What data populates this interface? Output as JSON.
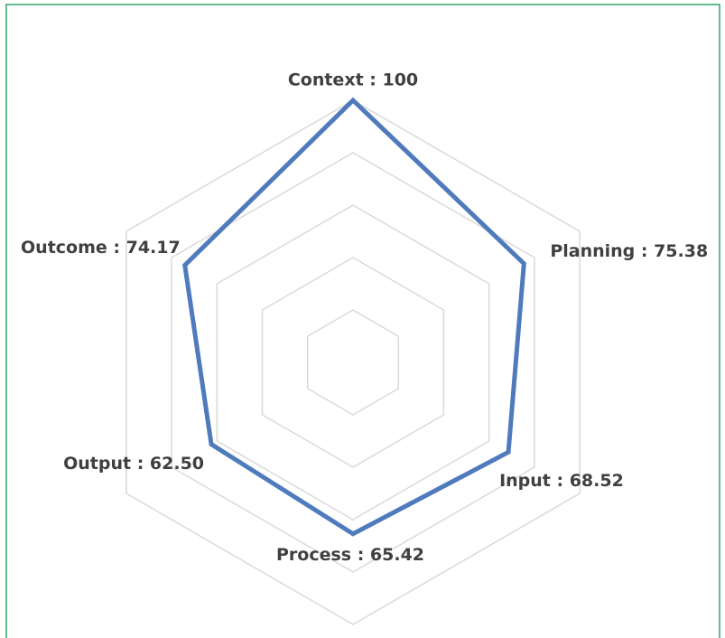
{
  "chart_data": {
    "type": "radar",
    "categories": [
      "Context : 100",
      "Planning : 75.38",
      "Input : 68.52",
      "Process : 65.42",
      "Output : 62.50",
      "Outcome : 74.17"
    ],
    "values": [
      100,
      75.38,
      68.52,
      65.42,
      62.5,
      74.17
    ],
    "color": "#4f7bbd",
    "rlim": [
      0,
      100
    ],
    "rticks": [
      20,
      40,
      60,
      80,
      100
    ],
    "grid": true
  }
}
